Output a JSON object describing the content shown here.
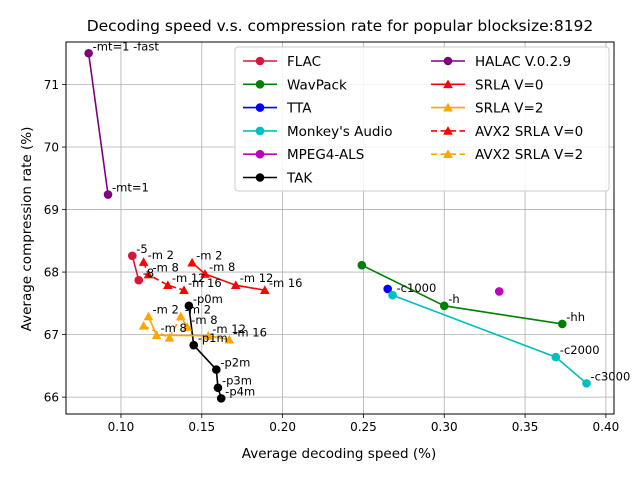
{
  "chart_data": {
    "type": "line",
    "title": "Decoding speed v.s. compression rate for popular blocksize:8192",
    "xlabel": "Average decoding speed (%)",
    "ylabel": "Average compression rate (%)",
    "xlim": [
      0.066,
      0.405
    ],
    "ylim": [
      65.73,
      71.68
    ],
    "xticks": [
      {
        "v": 0.1,
        "label": "0.10"
      },
      {
        "v": 0.15,
        "label": "0.15"
      },
      {
        "v": 0.2,
        "label": "0.20"
      },
      {
        "v": 0.25,
        "label": "0.25"
      },
      {
        "v": 0.3,
        "label": "0.30"
      },
      {
        "v": 0.35,
        "label": "0.35"
      },
      {
        "v": 0.4,
        "label": "0.40"
      }
    ],
    "yticks": [
      {
        "v": 66,
        "label": "66"
      },
      {
        "v": 67,
        "label": "67"
      },
      {
        "v": 68,
        "label": "68"
      },
      {
        "v": 69,
        "label": "69"
      },
      {
        "v": 70,
        "label": "70"
      },
      {
        "v": 71,
        "label": "71"
      }
    ],
    "grid": true,
    "legend_position": "top-right",
    "series": [
      {
        "name": "FLAC",
        "color": "#dc143c",
        "marker": "circle",
        "dash": false,
        "points": [
          {
            "x": 0.107,
            "y": 68.26,
            "label": "-5"
          },
          {
            "x": 0.111,
            "y": 67.87,
            "label": "-8"
          }
        ]
      },
      {
        "name": "WavPack",
        "color": "#008000",
        "marker": "circle",
        "dash": false,
        "points": [
          {
            "x": 0.249,
            "y": 68.11,
            "label": ""
          },
          {
            "x": 0.3,
            "y": 67.46,
            "label": "-h"
          },
          {
            "x": 0.373,
            "y": 67.17,
            "label": "-hh"
          }
        ]
      },
      {
        "name": "TTA",
        "color": "#0000ff",
        "marker": "circle",
        "dash": false,
        "points": [
          {
            "x": 0.265,
            "y": 67.73,
            "label": ""
          }
        ]
      },
      {
        "name": "Monkey's Audio",
        "color": "#00bfbf",
        "marker": "circle",
        "dash": false,
        "points": [
          {
            "x": 0.268,
            "y": 67.63,
            "label": "-c1000"
          },
          {
            "x": 0.369,
            "y": 66.64,
            "label": "-c2000"
          },
          {
            "x": 0.388,
            "y": 66.22,
            "label": "-c3000"
          }
        ]
      },
      {
        "name": "MPEG4-ALS",
        "color": "#bf00bf",
        "marker": "circle",
        "dash": false,
        "points": [
          {
            "x": 0.334,
            "y": 67.69,
            "label": ""
          }
        ]
      },
      {
        "name": "TAK",
        "color": "#000000",
        "marker": "circle",
        "dash": false,
        "points": [
          {
            "x": 0.142,
            "y": 67.46,
            "label": "-p0m"
          },
          {
            "x": 0.145,
            "y": 66.83,
            "label": "-p1m"
          },
          {
            "x": 0.159,
            "y": 66.44,
            "label": "-p2m"
          },
          {
            "x": 0.16,
            "y": 66.15,
            "label": "-p3m"
          },
          {
            "x": 0.162,
            "y": 65.98,
            "label": "-p4m"
          }
        ]
      },
      {
        "name": "HALAC V.0.2.9",
        "color": "#800080",
        "marker": "circle",
        "dash": false,
        "points": [
          {
            "x": 0.08,
            "y": 71.5,
            "label": "-mt=1 -fast"
          },
          {
            "x": 0.092,
            "y": 69.24,
            "label": "-mt=1"
          }
        ]
      },
      {
        "name": "SRLA V=0",
        "color": "#ff0000",
        "marker": "triangle",
        "dash": false,
        "points": [
          {
            "x": 0.144,
            "y": 68.15,
            "label": "-m 2"
          },
          {
            "x": 0.152,
            "y": 67.97,
            "label": "-m 8"
          },
          {
            "x": 0.171,
            "y": 67.79,
            "label": "-m 12"
          },
          {
            "x": 0.189,
            "y": 67.71,
            "label": "-m 16"
          }
        ]
      },
      {
        "name": "SRLA V=2",
        "color": "#ffa500",
        "marker": "triangle",
        "dash": false,
        "points": [
          {
            "x": 0.117,
            "y": 67.29,
            "label": "-m 2"
          },
          {
            "x": 0.122,
            "y": 66.99,
            "label": "-m 8"
          },
          {
            "x": 0.154,
            "y": 66.98,
            "label": "-m 12"
          },
          {
            "x": 0.167,
            "y": 66.92,
            "label": "-m 16"
          }
        ]
      },
      {
        "name": "AVX2 SRLA V=0",
        "color": "#ff0000",
        "marker": "triangle",
        "dash": true,
        "points": [
          {
            "x": 0.114,
            "y": 68.16,
            "label": "-m 2"
          },
          {
            "x": 0.117,
            "y": 67.96,
            "label": "-m 8"
          },
          {
            "x": 0.129,
            "y": 67.79,
            "label": "-m 12"
          },
          {
            "x": 0.139,
            "y": 67.71,
            "label": "-m 16"
          }
        ]
      },
      {
        "name": "AVX2 SRLA V=2",
        "color": "#ffa500",
        "marker": "triangle",
        "dash": true,
        "points": [
          {
            "x": 0.114,
            "y": 67.14,
            "label": ""
          },
          {
            "x": 0.13,
            "y": 66.95,
            "label": ""
          },
          {
            "x": 0.137,
            "y": 67.29,
            "label": "-m 2"
          },
          {
            "x": 0.141,
            "y": 67.12,
            "label": "-m 8"
          }
        ]
      }
    ]
  }
}
